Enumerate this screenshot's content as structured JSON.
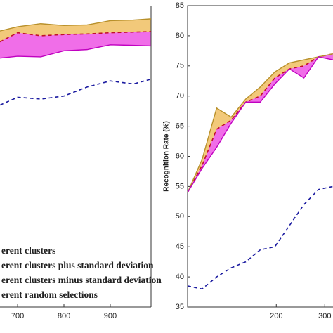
{
  "chart_data": [
    {
      "type": "line",
      "x": [
        662,
        700,
        750,
        800,
        850,
        900,
        950,
        988
      ],
      "xlim": [
        662,
        988
      ],
      "xticks": [
        700,
        800,
        900
      ],
      "ylim": [
        35,
        85
      ],
      "series": [
        {
          "name": "erent clusters",
          "color": "#c0102a",
          "dash": true,
          "values": [
            79,
            80.5,
            80,
            80.2,
            80.3,
            80.5,
            80.6,
            80.7
          ]
        },
        {
          "name": "erent clusters plus standard deviation",
          "color": "#b8902a",
          "fill": "#f2c97a",
          "values": [
            80.8,
            81.5,
            82,
            81.7,
            81.8,
            82.5,
            82.6,
            82.8
          ]
        },
        {
          "name": "erent clusters minus standard deviation",
          "color": "#c000c0",
          "fill": "#f06ee8",
          "values": [
            76.3,
            76.6,
            76.5,
            77.5,
            77.7,
            78.5,
            78.4,
            78.3
          ]
        },
        {
          "name": "erent random selections",
          "color": "#1a1aa0",
          "dash": true,
          "values": [
            68.5,
            69.8,
            69.5,
            70,
            71.5,
            72.5,
            72,
            72.8
          ]
        }
      ]
    },
    {
      "type": "line",
      "y_label": "Recognition Rate (%)",
      "x": [
        17,
        47,
        77,
        107,
        137,
        167,
        197,
        227,
        257,
        287,
        317
      ],
      "xlim": [
        17,
        317
      ],
      "xticks": [
        200,
        300
      ],
      "ylim": [
        35,
        85
      ],
      "yticks": [
        35,
        40,
        45,
        50,
        55,
        60,
        65,
        70,
        75,
        80,
        85
      ],
      "series": [
        {
          "color": "#c0102a",
          "dash": true,
          "values": [
            54,
            58.5,
            64.5,
            66,
            69,
            70,
            73,
            74.5,
            75,
            76.5,
            77
          ]
        },
        {
          "color": "#b8902a",
          "fill": "#f2c97a",
          "values": [
            54,
            59.5,
            68,
            66.5,
            69.5,
            71.5,
            74,
            75.5,
            76,
            76.5,
            77
          ]
        },
        {
          "color": "#c000c0",
          "fill": "#f06ee8",
          "values": [
            54,
            58,
            61.5,
            65.5,
            69,
            69,
            72,
            74.5,
            73,
            76.5,
            76
          ]
        },
        {
          "color": "#1a1aa0",
          "dash": true,
          "values": [
            38.5,
            38,
            40,
            41.5,
            42.5,
            44.5,
            45,
            48.5,
            52,
            54.5,
            55
          ]
        }
      ]
    }
  ]
}
